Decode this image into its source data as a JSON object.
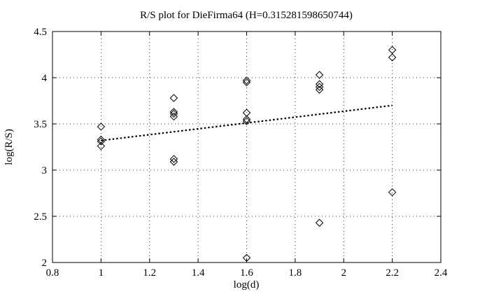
{
  "chart_data": {
    "type": "scatter",
    "title": "R/S plot for DieFirma64 (H=0.315281598650744)",
    "xlabel": "log(d)",
    "ylabel": "log(R/S)",
    "xlim": [
      0.8,
      2.4
    ],
    "ylim": [
      2,
      4.5
    ],
    "xticks": [
      0.8,
      1,
      1.2,
      1.4,
      1.6,
      1.8,
      2,
      2.2,
      2.4
    ],
    "xtick_labels": [
      "0.8",
      "1",
      "1.2",
      "1.4",
      "1.6",
      "1.8",
      "2",
      "2.2",
      "2.4"
    ],
    "yticks": [
      2,
      2.5,
      3,
      3.5,
      4,
      4.5
    ],
    "ytick_labels": [
      "2",
      "2.5",
      "3",
      "3.5",
      "4",
      "4.5"
    ],
    "grid": true,
    "marker": "open-diamond",
    "colors": {
      "foreground": "#000000",
      "background": "#ffffff"
    },
    "points": [
      [
        1.0,
        3.47
      ],
      [
        1.0,
        3.33
      ],
      [
        1.0,
        3.31
      ],
      [
        1.0,
        3.26
      ],
      [
        1.3,
        3.78
      ],
      [
        1.3,
        3.63
      ],
      [
        1.3,
        3.61
      ],
      [
        1.3,
        3.58
      ],
      [
        1.3,
        3.12
      ],
      [
        1.3,
        3.09
      ],
      [
        1.6,
        3.97
      ],
      [
        1.6,
        3.95
      ],
      [
        1.6,
        3.62
      ],
      [
        1.6,
        3.55
      ],
      [
        1.6,
        3.53
      ],
      [
        1.6,
        2.05
      ],
      [
        1.9,
        4.03
      ],
      [
        1.9,
        3.93
      ],
      [
        1.9,
        3.9
      ],
      [
        1.9,
        3.87
      ],
      [
        1.9,
        2.43
      ],
      [
        2.2,
        4.3
      ],
      [
        2.2,
        4.22
      ],
      [
        2.2,
        2.76
      ]
    ],
    "fit_line": {
      "x1": 1.0,
      "y1": 3.32,
      "x2": 2.2,
      "y2": 3.7,
      "style": "dotted"
    }
  }
}
